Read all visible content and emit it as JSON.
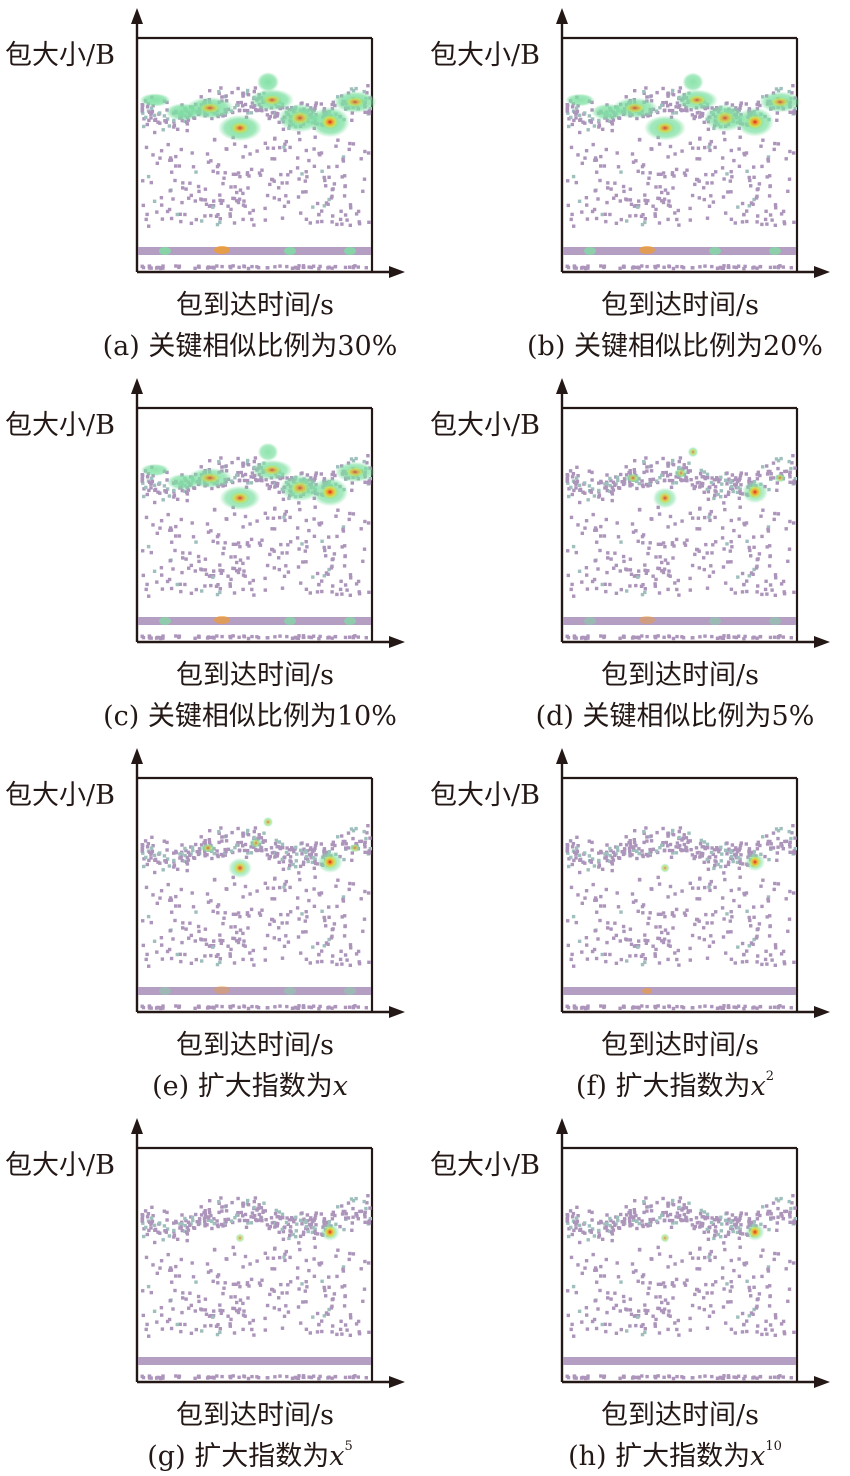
{
  "colors": {
    "text": "#231815",
    "point": "#ac94bb",
    "point_light": "#9fbfbd",
    "heat_low": "#7ee0a2",
    "heat_mid": "#d7e24a",
    "heat_high": "#f39c2c",
    "heat_peak": "#d8201c"
  },
  "chart_data": [
    {
      "type": "scatter",
      "panel": "a",
      "ylabel": "包大小/B",
      "xlabel": "包到达时间/s",
      "caption": {
        "prefix": "(a) 关键相似比例为30%",
        "var": "",
        "sup": ""
      },
      "heatmap_intensity": 1.0,
      "hotspot_set": "full"
    },
    {
      "type": "scatter",
      "panel": "b",
      "ylabel": "包大小/B",
      "xlabel": "包到达时间/s",
      "caption": {
        "prefix": "(b) 关键相似比例为20%",
        "var": "",
        "sup": ""
      },
      "heatmap_intensity": 0.9,
      "hotspot_set": "full"
    },
    {
      "type": "scatter",
      "panel": "c",
      "ylabel": "包大小/B",
      "xlabel": "包到达时间/s",
      "caption": {
        "prefix": "(c) 关键相似比例为10%",
        "var": "",
        "sup": ""
      },
      "heatmap_intensity": 0.85,
      "hotspot_set": "full"
    },
    {
      "type": "scatter",
      "panel": "d",
      "ylabel": "包大小/B",
      "xlabel": "包到达时间/s",
      "caption": {
        "prefix": "(d) 关键相似比例为5%",
        "var": "",
        "sup": ""
      },
      "heatmap_intensity": 0.55,
      "hotspot_set": "medium"
    },
    {
      "type": "scatter",
      "panel": "e",
      "ylabel": "包大小/B",
      "xlabel": "包到达时间/s",
      "caption": {
        "prefix": "(e) 扩大指数为",
        "var": "x",
        "sup": ""
      },
      "heatmap_intensity": 0.5,
      "hotspot_set": "medium"
    },
    {
      "type": "scatter",
      "panel": "f",
      "ylabel": "包大小/B",
      "xlabel": "包到达时间/s",
      "caption": {
        "prefix": "(f) 扩大指数为",
        "var": "x",
        "sup": "2"
      },
      "heatmap_intensity": 0.35,
      "hotspot_set": "single"
    },
    {
      "type": "scatter",
      "panel": "g",
      "ylabel": "包大小/B",
      "xlabel": "包到达时间/s",
      "caption": {
        "prefix": "(g) 扩大指数为",
        "var": "x",
        "sup": "5"
      },
      "heatmap_intensity": 0.3,
      "hotspot_set": "single"
    },
    {
      "type": "scatter",
      "panel": "h",
      "ylabel": "包大小/B",
      "xlabel": "包到达时间/s",
      "caption": {
        "prefix": "(h) 扩大指数为",
        "var": "x",
        "sup": "10"
      },
      "heatmap_intensity": 0.3,
      "hotspot_set": "single"
    }
  ]
}
